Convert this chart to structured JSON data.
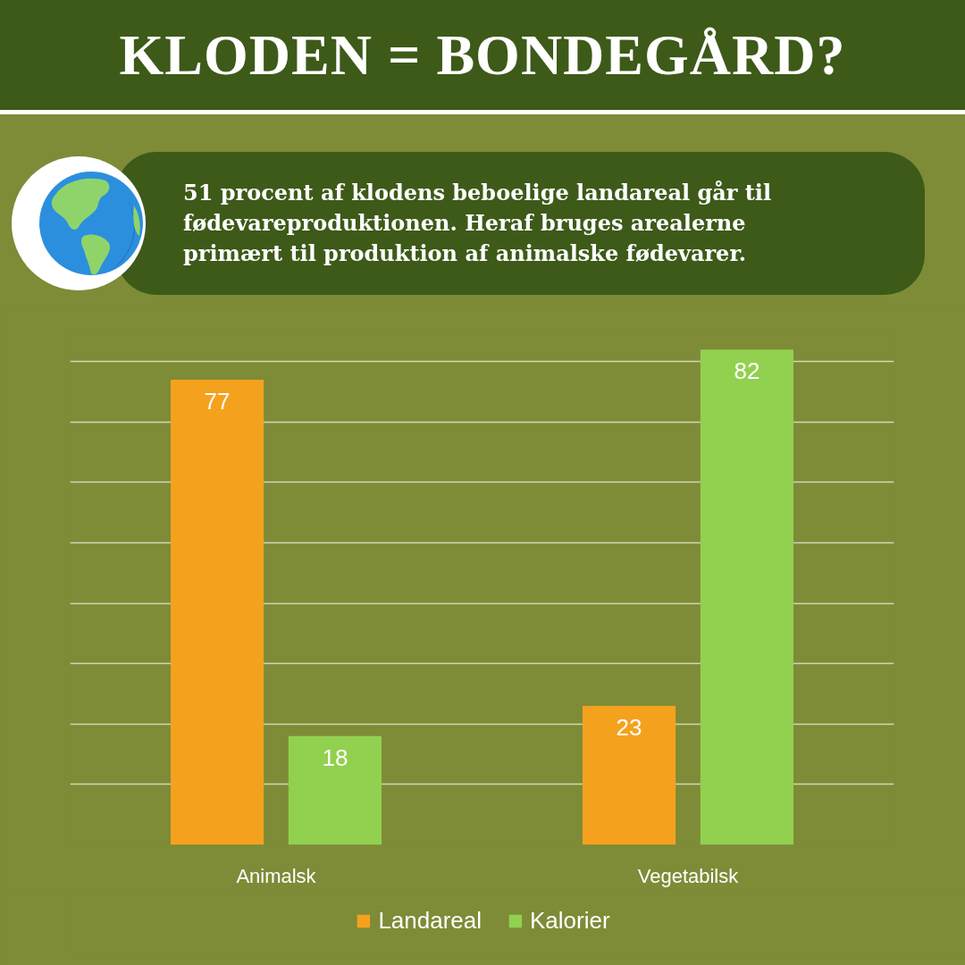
{
  "chart_data": {
    "type": "bar",
    "title": "KLODEN = BONDEGÅRD?",
    "subtitle": "51 procent af klodens beboelige landareal går til fødevareproduktionen. Heraf bruges arealerne primært til produktion af animalske fødevarer.",
    "categories": [
      "Animalsk",
      "Vegetabilsk"
    ],
    "series": [
      {
        "name": "Landareal",
        "color": "#f4a21e",
        "values": [
          77,
          23
        ]
      },
      {
        "name": "Kalorier",
        "color": "#92d050",
        "values": [
          18,
          82
        ]
      }
    ],
    "tick_labels": "x",
    "grid": "y",
    "data_labels": true,
    "legend": "bottom"
  }
}
